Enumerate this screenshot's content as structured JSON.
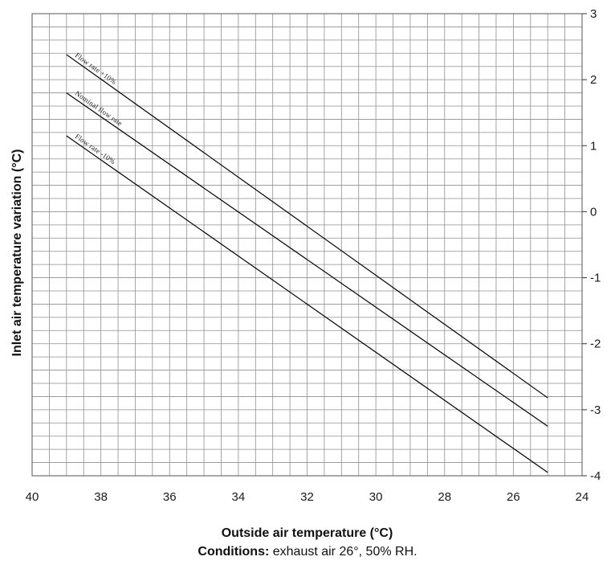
{
  "chart_data": {
    "type": "line",
    "xlabel": "Outside air temperature (°C)",
    "ylabel": "Inlet air temperature variation (°C)",
    "xlim": [
      40,
      24
    ],
    "ylim": [
      -4,
      3
    ],
    "x_ticks": [
      40,
      38,
      36,
      34,
      32,
      30,
      28,
      26,
      24
    ],
    "y_ticks": [
      3,
      2,
      1,
      0,
      -1,
      -2,
      -3,
      -4
    ],
    "y_axis_side": "right",
    "grid": true,
    "series": [
      {
        "name": "Flow rate +10%",
        "x": [
          39,
          25
        ],
        "y": [
          2.38,
          -2.82
        ]
      },
      {
        "name": "Nominal flow rate",
        "x": [
          39,
          25
        ],
        "y": [
          1.8,
          -3.25
        ]
      },
      {
        "name": "Flow rate -10%",
        "x": [
          39,
          25
        ],
        "y": [
          1.15,
          -3.95
        ]
      }
    ]
  },
  "caption": {
    "label": "Conditions:",
    "text": " exhaust air 26°, 50% RH."
  }
}
